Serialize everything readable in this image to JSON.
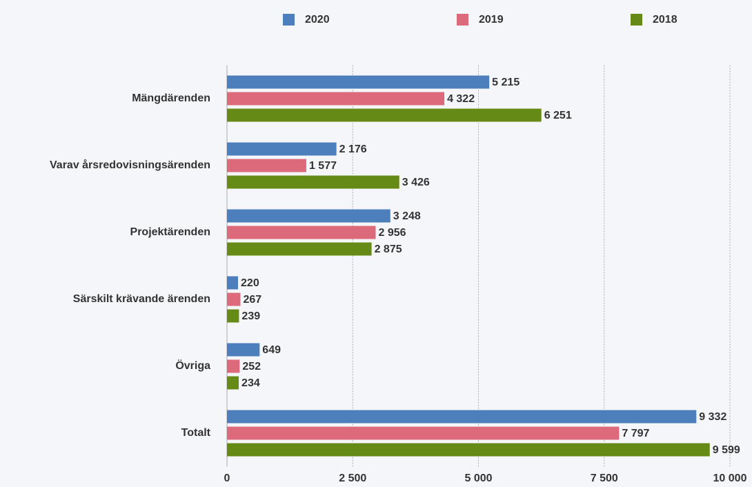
{
  "chart_data": {
    "type": "hbar",
    "categories": [
      "Mängdärenden",
      "Varav årsredovisningsärenden",
      "Projektärenden",
      "Särskilt krävande ärenden",
      "Övriga",
      "Totalt"
    ],
    "series": [
      {
        "name": "2020",
        "color": "#4e7fbd",
        "values": [
          5215,
          2176,
          3248,
          220,
          649,
          9332
        ],
        "value_labels": [
          "5 215",
          "2 176",
          "3 248",
          "220",
          "649",
          "9 332"
        ]
      },
      {
        "name": "2019",
        "color": "#dc6a7a",
        "values": [
          4322,
          1577,
          2956,
          267,
          252,
          7797
        ],
        "value_labels": [
          "4 322",
          "1 577",
          "2 956",
          "267",
          "252",
          "7 797"
        ]
      },
      {
        "name": "2018",
        "color": "#668a16",
        "values": [
          6251,
          3426,
          2875,
          239,
          234,
          9599
        ],
        "value_labels": [
          "6 251",
          "3 426",
          "2 875",
          "239",
          "234",
          "9 599"
        ]
      }
    ],
    "xlim": [
      0,
      10000
    ],
    "xticks": [
      0,
      {
        "value": 2500,
        "label": "2 500"
      },
      {
        "value": 5000,
        "label": "5 000"
      },
      {
        "value": 7500,
        "label": "7 500"
      },
      {
        "value": 10000,
        "label": "10 000"
      }
    ],
    "grid": true,
    "legend": "top"
  }
}
